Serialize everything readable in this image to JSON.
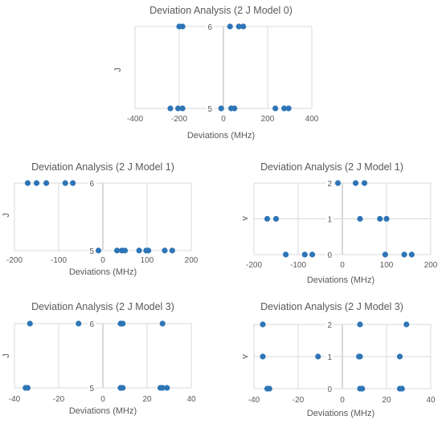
{
  "chart_data": [
    {
      "type": "scatter",
      "title": "Deviation Analysis (2 J Model 0)",
      "xlabel": "Deviations (MHz)",
      "ylabel": "J",
      "xlim": [
        -400,
        400
      ],
      "xticks": [
        -400,
        -200,
        0,
        200,
        400
      ],
      "ylim": [
        5,
        6
      ],
      "yticks": [
        5,
        6
      ],
      "grid": "vertical",
      "points": [
        {
          "x": -200,
          "y": 6
        },
        {
          "x": -185,
          "y": 6
        },
        {
          "x": 30,
          "y": 6
        },
        {
          "x": 70,
          "y": 6
        },
        {
          "x": 90,
          "y": 6
        },
        {
          "x": -240,
          "y": 5
        },
        {
          "x": -205,
          "y": 5
        },
        {
          "x": -185,
          "y": 5
        },
        {
          "x": -10,
          "y": 5
        },
        {
          "x": 35,
          "y": 5
        },
        {
          "x": 50,
          "y": 5
        },
        {
          "x": 235,
          "y": 5
        },
        {
          "x": 275,
          "y": 5
        },
        {
          "x": 295,
          "y": 5
        }
      ]
    },
    {
      "type": "scatter",
      "title": "Deviation Analysis (2 J Model 1)",
      "xlabel": "Deviations (MHz)",
      "ylabel": "J",
      "xlim": [
        -200,
        200
      ],
      "xticks": [
        -200,
        -100,
        0,
        100,
        200
      ],
      "ylim": [
        5,
        6
      ],
      "yticks": [
        5,
        6
      ],
      "grid": "vertical",
      "points": [
        {
          "x": -170,
          "y": 6
        },
        {
          "x": -150,
          "y": 6
        },
        {
          "x": -128,
          "y": 6
        },
        {
          "x": -85,
          "y": 6
        },
        {
          "x": -68,
          "y": 6
        },
        {
          "x": -10,
          "y": 5
        },
        {
          "x": 32,
          "y": 5
        },
        {
          "x": 43,
          "y": 5
        },
        {
          "x": 50,
          "y": 5
        },
        {
          "x": 82,
          "y": 5
        },
        {
          "x": 98,
          "y": 5
        },
        {
          "x": 103,
          "y": 5
        },
        {
          "x": 140,
          "y": 5
        },
        {
          "x": 157,
          "y": 5
        }
      ]
    },
    {
      "type": "scatter",
      "title": "Deviation Analysis (2 J Model 1)",
      "xlabel": "Deviations (MHz)",
      "ylabel": "v",
      "xlim": [
        -200,
        200
      ],
      "xticks": [
        -200,
        -100,
        0,
        100,
        200
      ],
      "ylim": [
        0,
        2
      ],
      "yticks": [
        0,
        1,
        2
      ],
      "grid": "both",
      "points": [
        {
          "x": -10,
          "y": 2
        },
        {
          "x": 30,
          "y": 2
        },
        {
          "x": 50,
          "y": 2
        },
        {
          "x": -170,
          "y": 1
        },
        {
          "x": -150,
          "y": 1
        },
        {
          "x": 40,
          "y": 1
        },
        {
          "x": 85,
          "y": 1
        },
        {
          "x": 100,
          "y": 1
        },
        {
          "x": -128,
          "y": 0
        },
        {
          "x": -85,
          "y": 0
        },
        {
          "x": -68,
          "y": 0
        },
        {
          "x": 97,
          "y": 0
        },
        {
          "x": 140,
          "y": 0
        },
        {
          "x": 157,
          "y": 0
        }
      ]
    },
    {
      "type": "scatter",
      "title": "Deviation Analysis (2 J Model 3)",
      "xlabel": "Deviations (MHz)",
      "ylabel": "J",
      "xlim": [
        -40,
        40
      ],
      "xticks": [
        -40,
        -20,
        0,
        20,
        40
      ],
      "ylim": [
        5,
        6
      ],
      "yticks": [
        5,
        6
      ],
      "grid": "vertical",
      "points": [
        {
          "x": -33,
          "y": 6
        },
        {
          "x": -11,
          "y": 6
        },
        {
          "x": 8,
          "y": 6
        },
        {
          "x": 8.5,
          "y": 6
        },
        {
          "x": 9,
          "y": 6
        },
        {
          "x": 27,
          "y": 6
        },
        {
          "x": -35,
          "y": 5
        },
        {
          "x": -34,
          "y": 5
        },
        {
          "x": 8,
          "y": 5
        },
        {
          "x": 8.5,
          "y": 5
        },
        {
          "x": 9,
          "y": 5
        },
        {
          "x": 26,
          "y": 5
        },
        {
          "x": 27,
          "y": 5
        },
        {
          "x": 29,
          "y": 5
        }
      ]
    },
    {
      "type": "scatter",
      "title": "Deviation Analysis (2 J Model 3)",
      "xlabel": "Deviations (MHz)",
      "ylabel": "v",
      "xlim": [
        -40,
        40
      ],
      "xticks": [
        -40,
        -20,
        0,
        20,
        40
      ],
      "ylim": [
        0,
        2
      ],
      "yticks": [
        0,
        1,
        2
      ],
      "grid": "both",
      "points": [
        {
          "x": -36,
          "y": 2
        },
        {
          "x": 8,
          "y": 2
        },
        {
          "x": 29,
          "y": 2
        },
        {
          "x": -36,
          "y": 1
        },
        {
          "x": -11,
          "y": 1
        },
        {
          "x": 7.5,
          "y": 1
        },
        {
          "x": 8,
          "y": 1
        },
        {
          "x": 26,
          "y": 1
        },
        {
          "x": -34,
          "y": 0
        },
        {
          "x": -33,
          "y": 0
        },
        {
          "x": 8,
          "y": 0
        },
        {
          "x": 9,
          "y": 0
        },
        {
          "x": 26,
          "y": 0
        },
        {
          "x": 27,
          "y": 0
        }
      ]
    }
  ]
}
